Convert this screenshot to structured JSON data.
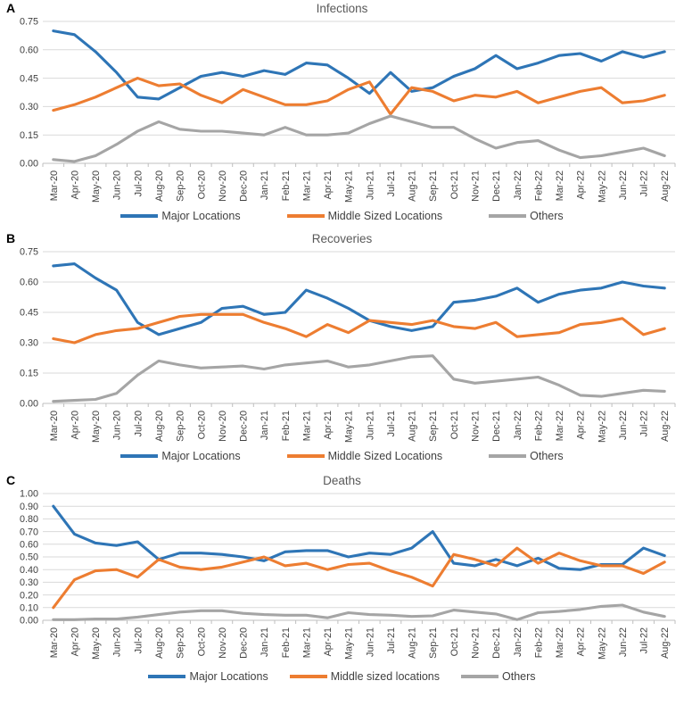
{
  "palette": {
    "major_blue": "#2E75B6",
    "middle_orange": "#ED7D31",
    "others_gray": "#A5A5A5",
    "gridline": "#D9D9D9",
    "axis_line": "#BFBFBF",
    "axis_text": "#404040",
    "title_text": "#595959",
    "panel_letter_text": "#000000"
  },
  "chart_data": [
    {
      "type": "line",
      "panel_letter": "A",
      "title": "Infections",
      "grid": true,
      "legend_position": "bottom",
      "ylim": [
        0,
        0.75
      ],
      "y_tick_step": 0.15,
      "y_tick_labels": [
        "0.75",
        "0.60",
        "0.45",
        "0.30",
        "0.15",
        "0.00"
      ],
      "categories": [
        "Mar-20",
        "Apr-20",
        "May-20",
        "Jun-20",
        "Jul-20",
        "Aug-20",
        "Sep-20",
        "Oct-20",
        "Nov-20",
        "Dec-20",
        "Jan-21",
        "Feb-21",
        "Mar-21",
        "Apr-21",
        "May-21",
        "Jun-21",
        "Jul-21",
        "Aug-21",
        "Sep-21",
        "Oct-21",
        "Nov-21",
        "Dec-21",
        "Jan-22",
        "Feb-22",
        "Mar-22",
        "Apr-22",
        "May-22",
        "Jun-22",
        "Jul-22",
        "Aug-22"
      ],
      "series": [
        {
          "name": "Major Locations",
          "color": "#2E75B6",
          "values": [
            0.7,
            0.68,
            0.59,
            0.48,
            0.35,
            0.34,
            0.4,
            0.46,
            0.48,
            0.46,
            0.49,
            0.47,
            0.53,
            0.52,
            0.45,
            0.37,
            0.48,
            0.38,
            0.4,
            0.46,
            0.5,
            0.57,
            0.5,
            0.53,
            0.57,
            0.58,
            0.54,
            0.59,
            0.56,
            0.59
          ]
        },
        {
          "name": "Middle Sized Locations",
          "color": "#ED7D31",
          "values": [
            0.28,
            0.31,
            0.35,
            0.4,
            0.45,
            0.41,
            0.42,
            0.36,
            0.32,
            0.39,
            0.35,
            0.31,
            0.31,
            0.33,
            0.39,
            0.43,
            0.26,
            0.4,
            0.38,
            0.33,
            0.36,
            0.35,
            0.38,
            0.32,
            0.35,
            0.38,
            0.4,
            0.32,
            0.33,
            0.36
          ]
        },
        {
          "name": "Others",
          "color": "#A5A5A5",
          "values": [
            0.02,
            0.01,
            0.04,
            0.1,
            0.17,
            0.22,
            0.18,
            0.17,
            0.17,
            0.16,
            0.15,
            0.19,
            0.15,
            0.15,
            0.16,
            0.21,
            0.25,
            0.22,
            0.19,
            0.19,
            0.13,
            0.08,
            0.11,
            0.12,
            0.07,
            0.03,
            0.04,
            0.06,
            0.08,
            0.04
          ]
        }
      ]
    },
    {
      "type": "line",
      "panel_letter": "B",
      "title": "Recoveries",
      "grid": true,
      "legend_position": "bottom",
      "ylim": [
        0,
        0.75
      ],
      "y_tick_step": 0.15,
      "y_tick_labels": [
        "0.75",
        "0.60",
        "0.45",
        "0.30",
        "0.15",
        "0.00"
      ],
      "categories": [
        "Mar-20",
        "Apr-20",
        "May-20",
        "Jun-20",
        "Jul-20",
        "Aug-20",
        "Sep-20",
        "Oct-20",
        "Nov-20",
        "Dec-20",
        "Jan-21",
        "Feb-21",
        "Mar-21",
        "Apr-21",
        "May-21",
        "Jun-21",
        "Jul-21",
        "Aug-21",
        "Sep-21",
        "Oct-21",
        "Nov-21",
        "Dec-21",
        "Jan-22",
        "Feb-22",
        "Mar-22",
        "Apr-22",
        "May-22",
        "Jun-22",
        "Jul-22",
        "Aug-22"
      ],
      "series": [
        {
          "name": "Major Locations",
          "color": "#2E75B6",
          "values": [
            0.68,
            0.69,
            0.62,
            0.56,
            0.4,
            0.34,
            0.37,
            0.4,
            0.47,
            0.48,
            0.44,
            0.45,
            0.56,
            0.52,
            0.47,
            0.41,
            0.38,
            0.36,
            0.38,
            0.5,
            0.51,
            0.53,
            0.57,
            0.5,
            0.54,
            0.56,
            0.57,
            0.6,
            0.58,
            0.57
          ]
        },
        {
          "name": "Middle Sized Locations",
          "color": "#ED7D31",
          "values": [
            0.32,
            0.3,
            0.34,
            0.36,
            0.37,
            0.4,
            0.43,
            0.44,
            0.44,
            0.44,
            0.4,
            0.37,
            0.33,
            0.39,
            0.35,
            0.41,
            0.4,
            0.39,
            0.41,
            0.38,
            0.37,
            0.4,
            0.33,
            0.34,
            0.35,
            0.39,
            0.4,
            0.42,
            0.34,
            0.37
          ]
        },
        {
          "name": "Others",
          "color": "#A5A5A5",
          "values": [
            0.01,
            0.015,
            0.02,
            0.05,
            0.14,
            0.21,
            0.19,
            0.175,
            0.18,
            0.185,
            0.17,
            0.19,
            0.2,
            0.21,
            0.18,
            0.19,
            0.21,
            0.23,
            0.235,
            0.12,
            0.1,
            0.11,
            0.12,
            0.13,
            0.09,
            0.04,
            0.035,
            0.05,
            0.065,
            0.06
          ]
        }
      ]
    },
    {
      "type": "line",
      "panel_letter": "C",
      "title": "Deaths",
      "grid": true,
      "legend_position": "bottom",
      "ylim": [
        0,
        1.0
      ],
      "y_tick_step": 0.1,
      "y_tick_labels": [
        "1.00",
        "0.90",
        "0.80",
        "0.70",
        "0.60",
        "0.50",
        "0.40",
        "0.30",
        "0.20",
        "0.10",
        "0.00"
      ],
      "categories": [
        "Mar-20",
        "Apr-20",
        "May-20",
        "Jun-20",
        "Jul-20",
        "Aug-20",
        "Sep-20",
        "Oct-20",
        "Nov-20",
        "Dec-20",
        "Jan-21",
        "Feb-21",
        "Mar-21",
        "Apr-21",
        "May-21",
        "Jun-21",
        "Jul-21",
        "Aug-21",
        "Sep-21",
        "Oct-21",
        "Nov-21",
        "Dec-21",
        "Jan-22",
        "Feb-22",
        "Mar-22",
        "Apr-22",
        "May-22",
        "Jun-22",
        "Jul-22",
        "Aug-22"
      ],
      "series": [
        {
          "name": "Major Locations",
          "color": "#2E75B6",
          "values": [
            0.9,
            0.68,
            0.61,
            0.59,
            0.62,
            0.48,
            0.53,
            0.53,
            0.52,
            0.5,
            0.47,
            0.54,
            0.55,
            0.55,
            0.5,
            0.53,
            0.52,
            0.57,
            0.7,
            0.45,
            0.43,
            0.48,
            0.43,
            0.49,
            0.41,
            0.4,
            0.44,
            0.44,
            0.57,
            0.51
          ]
        },
        {
          "name": "Middle sized locations",
          "color": "#ED7D31",
          "values": [
            0.1,
            0.32,
            0.39,
            0.4,
            0.34,
            0.48,
            0.42,
            0.4,
            0.42,
            0.46,
            0.5,
            0.43,
            0.45,
            0.4,
            0.44,
            0.45,
            0.39,
            0.34,
            0.27,
            0.52,
            0.48,
            0.43,
            0.57,
            0.45,
            0.53,
            0.47,
            0.43,
            0.43,
            0.37,
            0.46
          ]
        },
        {
          "name": "Others",
          "color": "#A5A5A5",
          "values": [
            0.005,
            0.005,
            0.01,
            0.01,
            0.025,
            0.045,
            0.065,
            0.075,
            0.075,
            0.055,
            0.045,
            0.04,
            0.04,
            0.02,
            0.06,
            0.045,
            0.04,
            0.03,
            0.035,
            0.08,
            0.065,
            0.05,
            0.005,
            0.06,
            0.07,
            0.085,
            0.11,
            0.12,
            0.065,
            0.03
          ]
        }
      ]
    }
  ]
}
